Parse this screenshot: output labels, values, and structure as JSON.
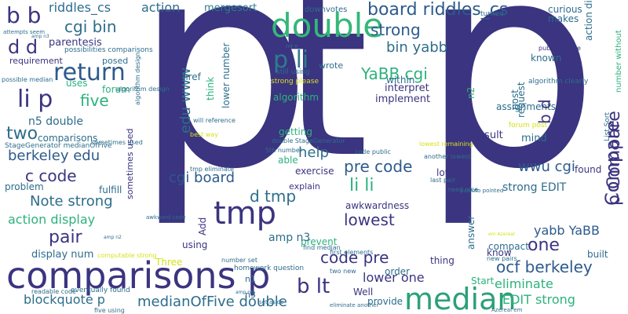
{
  "words": [
    "p",
    "t",
    "p",
    "comparisons",
    "comparisons p",
    "double",
    "tmp",
    "median",
    "return",
    "li p",
    "p li",
    "b b",
    "d d",
    "riddles_cs",
    "action",
    "mergesort",
    "board riddles_cs",
    "downvotes",
    "cgi bin",
    "parentesis",
    "strong",
    "bin yabb",
    "YaBB cgi",
    "requirement",
    "posed",
    "wrote",
    "lower number",
    "five",
    "edu www",
    "n5 double",
    "two",
    "comparisons",
    "berkeley edu",
    "c code",
    "Note strong",
    "action display",
    "display num",
    "blockquote p",
    "medianOfFive double",
    "pair",
    "cgi board",
    "d tmp",
    "pre code",
    "li li",
    "lowest",
    "code pre",
    "lower one",
    "b lt",
    "ocf berkeley",
    "one",
    "yabb YaBB",
    "eliminate",
    "EDIT strong",
    "strong EDIT",
    "wwu cgi",
    "Compare",
    "p Compare",
    "b d",
    "help",
    "interpret",
    "implement",
    "result",
    "mind",
    "known",
    "request",
    "getting",
    "exercise",
    "explain",
    "awkwardness",
    "found",
    "fulfill",
    "problem",
    "lower",
    "able",
    "thing",
    "order",
    "prevent",
    "provide",
    "Start",
    "answer",
    "compact",
    "built",
    "know",
    "Well",
    "Add",
    "using",
    "n1",
    "n3",
    "Three",
    "forum",
    "uses",
    "href",
    "think",
    "algorithm",
    "assignments",
    "makes",
    "post",
    "curious",
    "within",
    "n2",
    "turned",
    "strong please",
    "still using",
    "algorithm clearly",
    "public double",
    "forum post",
    "List Sort",
    "number without",
    "possibilities comparisons",
    "algorithm design",
    "sometimes used",
    "StageGenerator medianOfFive",
    "eventually found",
    "readable code",
    "five using",
    "computable strong",
    "homework question",
    "number set",
    "two new",
    "first elements",
    "find median",
    "need nice",
    "last pair",
    "another lowest",
    "double StageGenerator",
    "5th number",
    "code public",
    "lowest remaining",
    "will reference",
    "best way",
    "tmp eliminate",
    "possible median",
    "set aside",
    "new pairs",
    "Azereal em",
    "em Azereal",
    "pabloto pointed",
    "attempts seem",
    "awkward code",
    "eliminate another",
    "n4 e",
    "amp n3",
    "amp n4",
    "amp n2",
    "amp n3",
    "e",
    "gets e",
    "e makes",
    "e"
  ],
  "colors": {
    "background": "#ffffff",
    "palette": [
      "#3b2f7e",
      "#2d4d8a",
      "#2a7d8e",
      "#24998a",
      "#2db27d",
      "#5ac864",
      "#addc30",
      "#f0e51d",
      "#481a6c",
      "#46337e"
    ]
  }
}
